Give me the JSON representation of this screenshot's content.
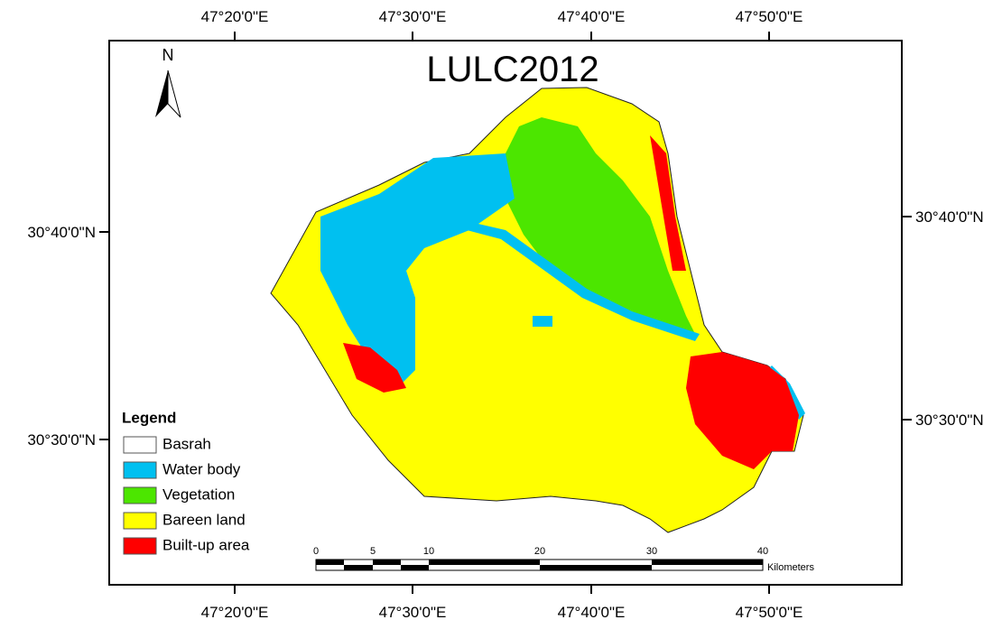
{
  "map": {
    "title": "LULC2012",
    "north_arrow": "N",
    "top_labels": [
      "47°20'0\"E",
      "47°30'0\"E",
      "47°40'0\"E",
      "47°50'0\"E"
    ],
    "bottom_labels": [
      "47°20'0\"E",
      "47°30'0\"E",
      "47°40'0\"E",
      "47°50'0\"E"
    ],
    "left_labels": [
      "30°40'0\"N",
      "30°30'0\"N"
    ],
    "right_labels": [
      "30°40'0\"N",
      "30°30'0\"N"
    ],
    "legend": {
      "title": "Legend",
      "items": [
        {
          "label": "Basrah",
          "color": "#ffffff"
        },
        {
          "label": "Water body",
          "color": "#00c0f0"
        },
        {
          "label": "Vegetation",
          "color": "#4ce600"
        },
        {
          "label": "Bareen land",
          "color": "#ffff00"
        },
        {
          "label": "Built-up area",
          "color": "#ff0000"
        }
      ]
    },
    "scale_bar": {
      "ticks": [
        "0",
        "5",
        "10",
        "20",
        "30",
        "40"
      ],
      "unit": "Kilometers"
    }
  }
}
